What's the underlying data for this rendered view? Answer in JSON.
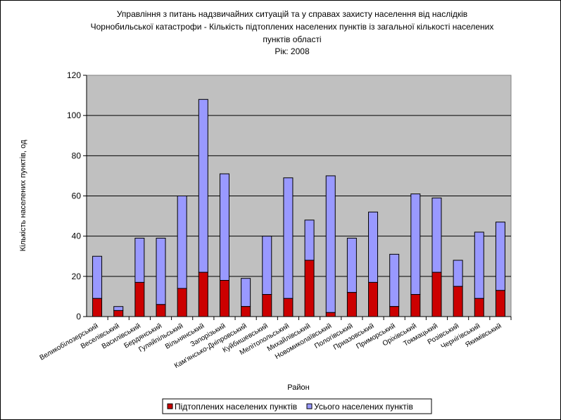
{
  "chart_data": {
    "type": "bar",
    "stacked": true,
    "title_lines": [
      "Управління з питань надзвичайних ситуацій та у справах захисту населення від наслідків",
      "Чорнобильської катастрофи - Кількість підтоплених населених пунктів із загальної кількості населених",
      "пунктів області",
      "Рік: 2008"
    ],
    "xlabel": "Район",
    "ylabel": "Кількість населених пунктів, од",
    "ylim": [
      0,
      120
    ],
    "yticks": [
      "0",
      "20",
      "40",
      "60",
      "80",
      "100",
      "120"
    ],
    "grid": true,
    "legend_position": "bottom",
    "plot_background": "#C0C0C0",
    "categories": [
      "Великобілозерський",
      "Веселівський",
      "Василівський",
      "Бердянський",
      "Гуляйпільський",
      "Вільнянський",
      "Запорізький",
      "Кам'янсько-Дніпровський",
      "Куйбишевський",
      "Мелітопольський",
      "Михайлівський",
      "Новомиколаївський",
      "Пологівський",
      "Приазовський",
      "Приморський",
      "Оріхівський",
      "Токмацький",
      "Розівський",
      "Чернігівський",
      "Якимівський"
    ],
    "series": [
      {
        "name": "Підтоплених населених пунктів",
        "color": "#CC0000",
        "values": [
          9,
          3,
          17,
          6,
          14,
          22,
          18,
          5,
          11,
          9,
          28,
          2,
          12,
          17,
          5,
          11,
          22,
          15,
          9,
          13
        ]
      },
      {
        "name": "Усього населених пунктів",
        "color": "#9999FF",
        "values": [
          30,
          5,
          39,
          39,
          60,
          108,
          71,
          19,
          40,
          69,
          48,
          70,
          39,
          52,
          31,
          61,
          59,
          28,
          42,
          47
        ]
      }
    ]
  }
}
